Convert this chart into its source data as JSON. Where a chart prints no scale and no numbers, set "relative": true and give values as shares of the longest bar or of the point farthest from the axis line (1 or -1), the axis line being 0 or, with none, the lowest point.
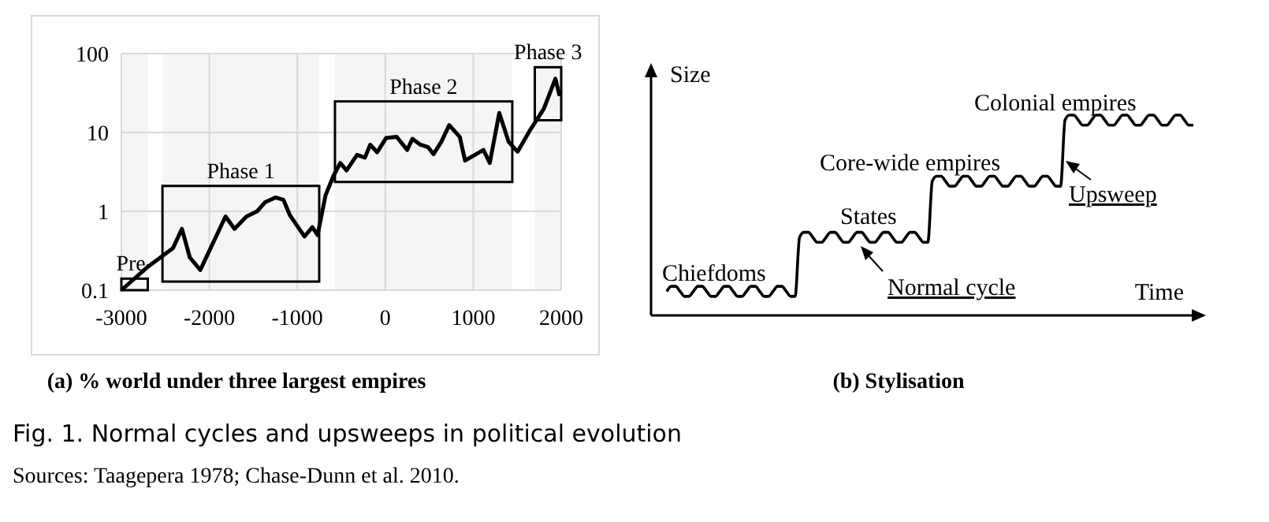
{
  "chart_data": [
    {
      "type": "line",
      "title": "(a) % world under three largest empires",
      "log": "y",
      "grid": true,
      "xlim": [
        -3000,
        2000
      ],
      "ylim": [
        0.1,
        100
      ],
      "xticks": [
        -3000,
        -2000,
        -1000,
        0,
        1000,
        2000
      ],
      "yticks": [
        0.1,
        1,
        10,
        100
      ],
      "series": [
        {
          "color": "#000000",
          "x": [
            -3000,
            -2695,
            -2414,
            -2312,
            -2222,
            -2103,
            -1816,
            -1714,
            -1577,
            -1457,
            -1367,
            -1248,
            -1158,
            -1086,
            -919,
            -829,
            -769,
            -679,
            -590,
            -512,
            -440,
            -321,
            -231,
            -171,
            -93,
            9,
            129,
            249,
            308,
            398,
            488,
            548,
            637,
            727,
            847,
            907,
            1116,
            1188,
            1296,
            1403,
            1504,
            1653,
            1803,
            1934,
            1982
          ],
          "values": [
            0.1,
            0.2,
            0.34,
            0.6,
            0.26,
            0.18,
            0.86,
            0.6,
            0.86,
            1.0,
            1.3,
            1.5,
            1.4,
            0.9,
            0.48,
            0.63,
            0.5,
            1.6,
            2.8,
            4.1,
            3.3,
            5.2,
            4.8,
            7,
            5.6,
            8.5,
            8.8,
            6,
            8.3,
            7,
            6.5,
            5.3,
            7.6,
            12.4,
            8.8,
            4.4,
            6,
            4.1,
            17.7,
            7.6,
            5.7,
            11,
            20,
            48,
            29
          ]
        }
      ],
      "bands": [
        {
          "axis": "x",
          "from": -3000,
          "to": -2700,
          "label": "Pre-"
        },
        {
          "axis": "x",
          "from": -2533,
          "to": -751,
          "label": "Phase 1"
        },
        {
          "axis": "x",
          "from": -572,
          "to": 1444,
          "label": "Phase 2"
        },
        {
          "axis": "x",
          "from": 1700,
          "to": 2000,
          "label": "Phase 3"
        }
      ],
      "annotations": [
        "Fig. 1. Normal cycles and upsweeps in political evolution",
        "Sources: Taagepera 1978; Chase-Dunn et al. 2010."
      ]
    },
    {
      "type": "line",
      "title": "(b) Stylisation",
      "relative": true,
      "xlabel": "Time",
      "ylabel": "Size",
      "categories": [
        null,
        null,
        null,
        null,
        null,
        null,
        null,
        null,
        null,
        null,
        null,
        null,
        null,
        null,
        null,
        null,
        null,
        null,
        null,
        null,
        null,
        null,
        null,
        null,
        null,
        null,
        null,
        null,
        null,
        null,
        null,
        null,
        null,
        null,
        null,
        null,
        null,
        null,
        null,
        null,
        null,
        null,
        null,
        null,
        null,
        null,
        null,
        null,
        null,
        null,
        null,
        null,
        null,
        null,
        null,
        null,
        null,
        null,
        null,
        null,
        null,
        null,
        null,
        null,
        null,
        null,
        null,
        null,
        null,
        null,
        null,
        null,
        null,
        null,
        null,
        null,
        null,
        null,
        null,
        null,
        null,
        null,
        null,
        null,
        null,
        null,
        null,
        null,
        null,
        null,
        null,
        null,
        null,
        null,
        null,
        null,
        null,
        null,
        null,
        null,
        null,
        null,
        null,
        null,
        null,
        null,
        null,
        null,
        null,
        null,
        null,
        null,
        null,
        null,
        null,
        null,
        null,
        null,
        null,
        null
      ],
      "series": [
        {
          "color": "#000000",
          "values": [
            0.12,
            0.145,
            0.145,
            0.12,
            0.095,
            0.095,
            0.12,
            0.145,
            0.145,
            0.12,
            0.095,
            0.095,
            0.12,
            0.145,
            0.145,
            0.12,
            0.095,
            0.095,
            0.12,
            0.145,
            0.145,
            0.12,
            0.095,
            0.095,
            0.12,
            0.145,
            0.145,
            0.12,
            0.095,
            0.095,
            0.39,
            0.415,
            0.415,
            0.39,
            0.365,
            0.365,
            0.39,
            0.415,
            0.415,
            0.39,
            0.365,
            0.365,
            0.39,
            0.415,
            0.415,
            0.39,
            0.365,
            0.365,
            0.39,
            0.415,
            0.415,
            0.39,
            0.365,
            0.365,
            0.39,
            0.415,
            0.415,
            0.39,
            0.365,
            0.365,
            0.67,
            0.695,
            0.695,
            0.67,
            0.645,
            0.645,
            0.67,
            0.695,
            0.695,
            0.67,
            0.645,
            0.645,
            0.67,
            0.695,
            0.695,
            0.67,
            0.645,
            0.645,
            0.67,
            0.695,
            0.695,
            0.67,
            0.645,
            0.645,
            0.67,
            0.695,
            0.695,
            0.67,
            0.645,
            0.645,
            0.975,
            1,
            1,
            0.975,
            0.95,
            0.95,
            0.975,
            1,
            1,
            0.975,
            0.95,
            0.95,
            0.975,
            1,
            1,
            0.975,
            0.95,
            0.95,
            0.975,
            1,
            1,
            0.975,
            0.95,
            0.95,
            0.975,
            1,
            1,
            0.975,
            0.95,
            0.95
          ]
        }
      ],
      "annotations": [
        "Chiefdoms",
        "States",
        "Core-wide empires",
        "Colonial empires",
        "Normal cycle",
        "Upsweep"
      ]
    }
  ]
}
